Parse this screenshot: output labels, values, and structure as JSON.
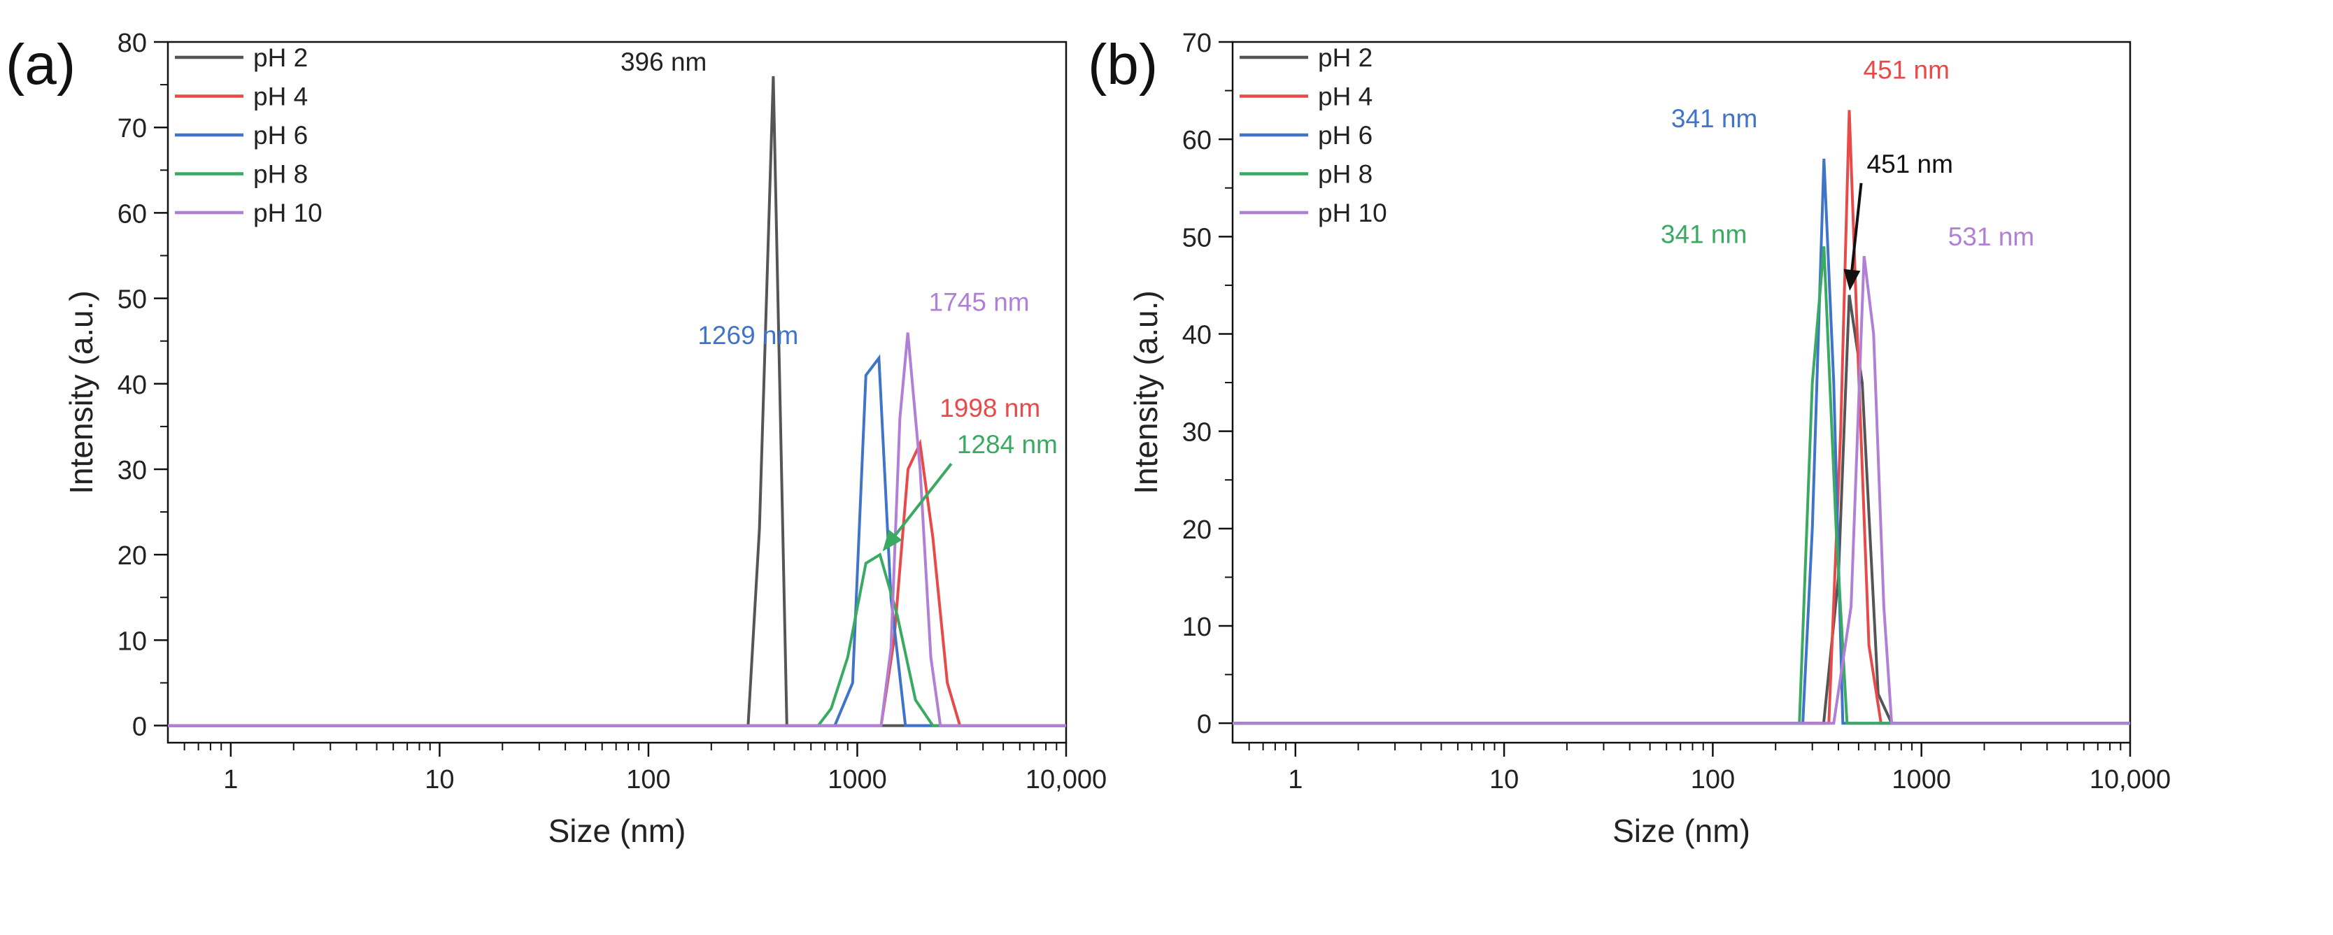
{
  "chart_data": [
    {
      "type": "line",
      "panel_label": "(a)",
      "xlabel": "Size (nm)",
      "ylabel": "Intensity (a.u.)",
      "xscale": "log",
      "xlim": [
        0.5,
        10000
      ],
      "ylim": [
        -2,
        80
      ],
      "xticks": [
        {
          "value": 1,
          "label": "1"
        },
        {
          "value": 10,
          "label": "10"
        },
        {
          "value": 100,
          "label": "100"
        },
        {
          "value": 1000,
          "label": "1000"
        },
        {
          "value": 10000,
          "label": "10,000"
        }
      ],
      "yticks": [
        {
          "value": 0,
          "label": "0"
        },
        {
          "value": 10,
          "label": "10"
        },
        {
          "value": 20,
          "label": "20"
        },
        {
          "value": 30,
          "label": "30"
        },
        {
          "value": 40,
          "label": "40"
        },
        {
          "value": 50,
          "label": "50"
        },
        {
          "value": 60,
          "label": "60"
        },
        {
          "value": 70,
          "label": "70"
        },
        {
          "value": 80,
          "label": "80"
        }
      ],
      "legend_position": "top-left",
      "series": [
        {
          "name": "pH 2",
          "color": "#555555",
          "x": [
            0.5,
            300,
            340,
            396,
            460,
            10000
          ],
          "y": [
            0,
            0,
            23,
            76,
            0,
            0
          ]
        },
        {
          "name": "pH 4",
          "color": "#e84a4a",
          "x": [
            0.5,
            1300,
            1500,
            1750,
            1998,
            2300,
            2700,
            3100,
            10000
          ],
          "y": [
            0,
            0,
            10,
            30,
            33,
            22,
            5,
            0,
            0
          ]
        },
        {
          "name": "pH 6",
          "color": "#3f74c9",
          "x": [
            0.5,
            780,
            950,
            1100,
            1269,
            1450,
            1700,
            10000
          ],
          "y": [
            0,
            0,
            5,
            41,
            43,
            15,
            0,
            0
          ]
        },
        {
          "name": "pH 8",
          "color": "#3aaa62",
          "x": [
            0.5,
            650,
            750,
            900,
            1100,
            1284,
            1550,
            1900,
            2300,
            10000
          ],
          "y": [
            0,
            0,
            2,
            8,
            19,
            20,
            13,
            3,
            0,
            0
          ]
        },
        {
          "name": "pH 10",
          "color": "#b07fd6",
          "x": [
            0.5,
            1300,
            1450,
            1600,
            1745,
            2000,
            2250,
            2500,
            10000
          ],
          "y": [
            0,
            0,
            9,
            36,
            46,
            30,
            8,
            0,
            0
          ]
        }
      ],
      "annotations": [
        {
          "text": "396 nm",
          "color": "#222222",
          "x": 396,
          "y": 76
        },
        {
          "text": "1745 nm",
          "color": "#b07fd6",
          "x": 1745,
          "y": 46.5
        },
        {
          "text": "1269 nm",
          "color": "#3f74c9",
          "x": 1269,
          "y": 43
        },
        {
          "text": "1998 nm",
          "color": "#e84a4a",
          "x": 1998,
          "y": 33.5
        },
        {
          "text": "1284 nm",
          "color": "#3aaa62",
          "x": 1284,
          "y": 20,
          "arrow": true
        }
      ]
    },
    {
      "type": "line",
      "panel_label": "(b)",
      "xlabel": "Size (nm)",
      "ylabel": "Intensity (a.u.)",
      "xscale": "log",
      "xlim": [
        0.5,
        10000
      ],
      "ylim": [
        -2,
        70
      ],
      "xticks": [
        {
          "value": 1,
          "label": "1"
        },
        {
          "value": 10,
          "label": "10"
        },
        {
          "value": 100,
          "label": "100"
        },
        {
          "value": 1000,
          "label": "1000"
        },
        {
          "value": 10000,
          "label": "10,000"
        }
      ],
      "yticks": [
        {
          "value": 0,
          "label": "0"
        },
        {
          "value": 10,
          "label": "10"
        },
        {
          "value": 20,
          "label": "20"
        },
        {
          "value": 30,
          "label": "30"
        },
        {
          "value": 40,
          "label": "40"
        },
        {
          "value": 50,
          "label": "50"
        },
        {
          "value": 60,
          "label": "60"
        },
        {
          "value": 70,
          "label": "70"
        }
      ],
      "legend_position": "top-left",
      "series": [
        {
          "name": "pH 2",
          "color": "#555555",
          "x": [
            0.5,
            340,
            400,
            451,
            520,
            620,
            720,
            10000
          ],
          "y": [
            0,
            0,
            15,
            44,
            35,
            3,
            0,
            0
          ]
        },
        {
          "name": "pH 4",
          "color": "#e84a4a",
          "x": [
            0.5,
            360,
            410,
            451,
            500,
            560,
            640,
            10000
          ],
          "y": [
            0,
            0,
            30,
            63,
            36,
            8,
            0,
            0
          ]
        },
        {
          "name": "pH 6",
          "color": "#3f74c9",
          "x": [
            0.5,
            270,
            300,
            341,
            380,
            420,
            10000
          ],
          "y": [
            0,
            0,
            20,
            58,
            35,
            0,
            0
          ]
        },
        {
          "name": "pH 8",
          "color": "#3aaa62",
          "x": [
            0.5,
            260,
            300,
            341,
            390,
            440,
            10000
          ],
          "y": [
            0,
            0,
            35,
            49,
            20,
            0,
            0
          ]
        },
        {
          "name": "pH 10",
          "color": "#b07fd6",
          "x": [
            0.5,
            380,
            460,
            531,
            590,
            660,
            720,
            10000
          ],
          "y": [
            0,
            0,
            12,
            48,
            40,
            12,
            0,
            0
          ]
        }
      ],
      "annotations": [
        {
          "text": "451 nm",
          "color": "#e84a4a",
          "x": 451,
          "y": 63
        },
        {
          "text": "341 nm",
          "color": "#3f74c9",
          "x": 341,
          "y": 58
        },
        {
          "text": "451 nm",
          "color": "#111111",
          "x": 451,
          "y": 44,
          "arrow": true
        },
        {
          "text": "341 nm",
          "color": "#3aaa62",
          "x": 341,
          "y": 49
        },
        {
          "text": "531 nm",
          "color": "#b07fd6",
          "x": 531,
          "y": 48
        }
      ]
    }
  ]
}
